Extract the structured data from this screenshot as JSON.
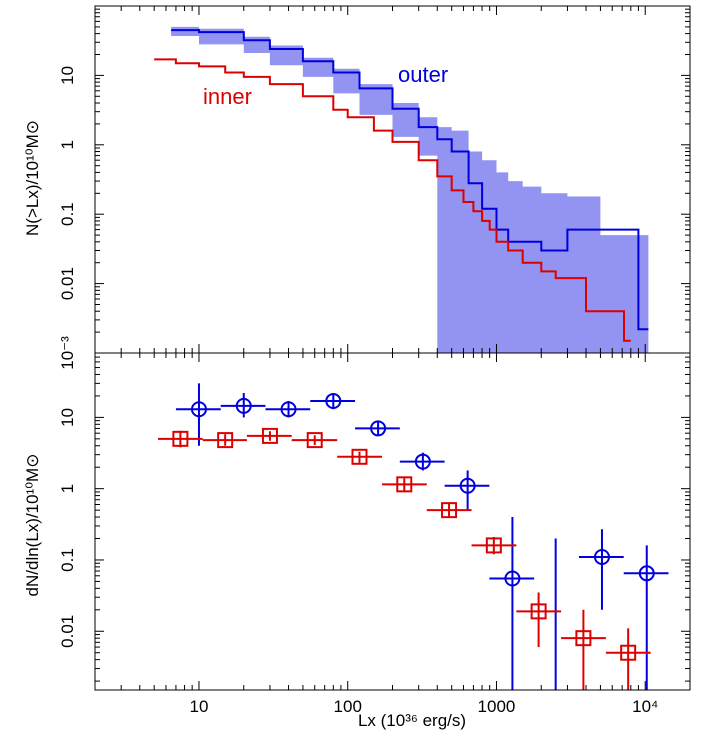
{
  "chart_data": [
    {
      "type": "line",
      "xscale": "log",
      "yscale": "log",
      "xlim": [
        2,
        20000
      ],
      "ylim": [
        0.001,
        100
      ],
      "ylabel": "N(>Lx)/10¹⁰M⊙",
      "yticks": [
        {
          "value": 0.001,
          "label": "10⁻³"
        },
        {
          "value": 0.01,
          "label": "0.01"
        },
        {
          "value": 0.1,
          "label": "0.1"
        },
        {
          "value": 1,
          "label": "1"
        },
        {
          "value": 10,
          "label": "10"
        }
      ],
      "annotations": [
        {
          "text": "outer",
          "series": "outer",
          "x": 400,
          "y": 18
        },
        {
          "text": "inner",
          "series": "inner",
          "x": 13,
          "y": 6.5
        }
      ],
      "series": [
        {
          "name": "outer",
          "color": "#0000dd",
          "band_color": "#8080f0",
          "x": [
            6.5,
            10,
            20,
            30,
            50,
            80,
            120,
            200,
            300,
            400,
            500,
            650,
            800,
            1000,
            1200,
            1500,
            2000,
            2500,
            3000,
            3500,
            5000,
            7000,
            9000,
            10500
          ],
          "y": [
            45,
            42,
            32,
            24,
            16,
            11,
            6.5,
            3.3,
            1.8,
            1.2,
            0.8,
            0.28,
            0.12,
            0.06,
            0.04,
            0.04,
            0.03,
            0.03,
            0.06,
            0.06,
            0.06,
            0.06,
            0.0022,
            0.0022
          ],
          "y_low": [
            40,
            37,
            28,
            21,
            14,
            9.5,
            5.5,
            2.7,
            1.3,
            0.7,
            0.001,
            0.001,
            0.001,
            0.001,
            0.001,
            0.001,
            0.001,
            0.001,
            0.001,
            0.001,
            0.001,
            0.001,
            0.001,
            0.001
          ],
          "y_high": [
            50,
            47,
            36,
            27,
            18,
            12.5,
            7.5,
            4,
            2.5,
            1.8,
            1.6,
            0.8,
            0.6,
            0.4,
            0.3,
            0.25,
            0.2,
            0.2,
            0.18,
            0.18,
            0.05,
            0.05,
            0.05,
            0.05
          ]
        },
        {
          "name": "inner",
          "color": "#dd0000",
          "x": [
            5,
            7,
            10,
            15,
            20,
            30,
            50,
            80,
            100,
            150,
            200,
            300,
            400,
            500,
            600,
            700,
            800,
            900,
            1000,
            1200,
            1500,
            2000,
            2500,
            3000,
            3500,
            4000,
            5000,
            7000,
            7200,
            8000
          ],
          "y": [
            17,
            15,
            13.5,
            11,
            9.5,
            7.5,
            5,
            3.2,
            2.5,
            1.6,
            1.1,
            0.6,
            0.35,
            0.22,
            0.15,
            0.11,
            0.08,
            0.06,
            0.04,
            0.03,
            0.02,
            0.015,
            0.012,
            0.012,
            0.012,
            0.004,
            0.004,
            0.004,
            0.0015,
            0.0015
          ]
        }
      ]
    },
    {
      "type": "scatter",
      "xscale": "log",
      "yscale": "log",
      "xlim": [
        2,
        20000
      ],
      "ylim": [
        0.0015,
        80
      ],
      "xlabel": "Lx (10³⁶ erg/s)",
      "ylabel": "dN/dln(Lx)/10¹⁰M⊙",
      "xticks": [
        {
          "value": 10,
          "label": "10"
        },
        {
          "value": 100,
          "label": "100"
        },
        {
          "value": 1000,
          "label": "1000"
        },
        {
          "value": 10000,
          "label": "10⁴"
        }
      ],
      "yticks": [
        {
          "value": 0.01,
          "label": "0.01"
        },
        {
          "value": 0.1,
          "label": "0.1"
        },
        {
          "value": 1,
          "label": "1"
        },
        {
          "value": 10,
          "label": "10"
        }
      ],
      "series": [
        {
          "name": "outer",
          "color": "#0000dd",
          "marker": "circle",
          "points": [
            {
              "x": 10,
              "xlo": 7,
              "xhi": 14,
              "y": 13,
              "ylo": 4,
              "yhi": 30
            },
            {
              "x": 20,
              "xlo": 14,
              "xhi": 28,
              "y": 14.5,
              "ylo": 10,
              "yhi": 22
            },
            {
              "x": 40,
              "xlo": 28,
              "xhi": 56,
              "y": 13,
              "ylo": 10,
              "yhi": 17
            },
            {
              "x": 80,
              "xlo": 56,
              "xhi": 112,
              "y": 17,
              "ylo": 13,
              "yhi": 21
            },
            {
              "x": 160,
              "xlo": 112,
              "xhi": 224,
              "y": 7,
              "ylo": 5.5,
              "yhi": 9
            },
            {
              "x": 320,
              "xlo": 224,
              "xhi": 448,
              "y": 2.4,
              "ylo": 1.8,
              "yhi": 3.2
            },
            {
              "x": 640,
              "xlo": 448,
              "xhi": 896,
              "y": 1.1,
              "ylo": 0.5,
              "yhi": 1.8
            },
            {
              "x": 1280,
              "xlo": 896,
              "xhi": 1792,
              "y": 0.055,
              "ylo": 0.0015,
              "yhi": 0.4
            },
            {
              "x": 2500,
              "xlo": null,
              "xhi": null,
              "y": 0.0015,
              "ylo": 0.0015,
              "yhi": 0.2
            },
            {
              "x": 5120,
              "xlo": 3584,
              "xhi": 7168,
              "y": 0.11,
              "ylo": 0.02,
              "yhi": 0.27
            },
            {
              "x": 10240,
              "xlo": 7168,
              "xhi": 14336,
              "y": 0.065,
              "ylo": 0.0015,
              "yhi": 0.16
            }
          ]
        },
        {
          "name": "inner",
          "color": "#dd0000",
          "marker": "square",
          "points": [
            {
              "x": 7.5,
              "xlo": 5.3,
              "xhi": 10.6,
              "y": 5,
              "ylo": 3.8,
              "yhi": 6.5
            },
            {
              "x": 15,
              "xlo": 10.6,
              "xhi": 21,
              "y": 4.8,
              "ylo": 4,
              "yhi": 5.8
            },
            {
              "x": 30,
              "xlo": 21,
              "xhi": 42,
              "y": 5.5,
              "ylo": 4.7,
              "yhi": 6.4
            },
            {
              "x": 60,
              "xlo": 42,
              "xhi": 85,
              "y": 4.8,
              "ylo": 4.1,
              "yhi": 5.6
            },
            {
              "x": 120,
              "xlo": 85,
              "xhi": 170,
              "y": 2.8,
              "ylo": 2.3,
              "yhi": 3.3
            },
            {
              "x": 240,
              "xlo": 170,
              "xhi": 340,
              "y": 1.15,
              "ylo": 0.9,
              "yhi": 1.4
            },
            {
              "x": 480,
              "xlo": 340,
              "xhi": 680,
              "y": 0.5,
              "ylo": 0.4,
              "yhi": 0.62
            },
            {
              "x": 960,
              "xlo": 680,
              "xhi": 1360,
              "y": 0.16,
              "ylo": 0.12,
              "yhi": 0.21
            },
            {
              "x": 1920,
              "xlo": 1360,
              "xhi": 2720,
              "y": 0.019,
              "ylo": 0.006,
              "yhi": 0.035
            },
            {
              "x": 3840,
              "xlo": 2720,
              "xhi": 5440,
              "y": 0.008,
              "ylo": 0.0015,
              "yhi": 0.02
            },
            {
              "x": 7680,
              "xlo": 5440,
              "xhi": 10880,
              "y": 0.005,
              "ylo": 0.0015,
              "yhi": 0.011
            }
          ]
        }
      ]
    }
  ]
}
